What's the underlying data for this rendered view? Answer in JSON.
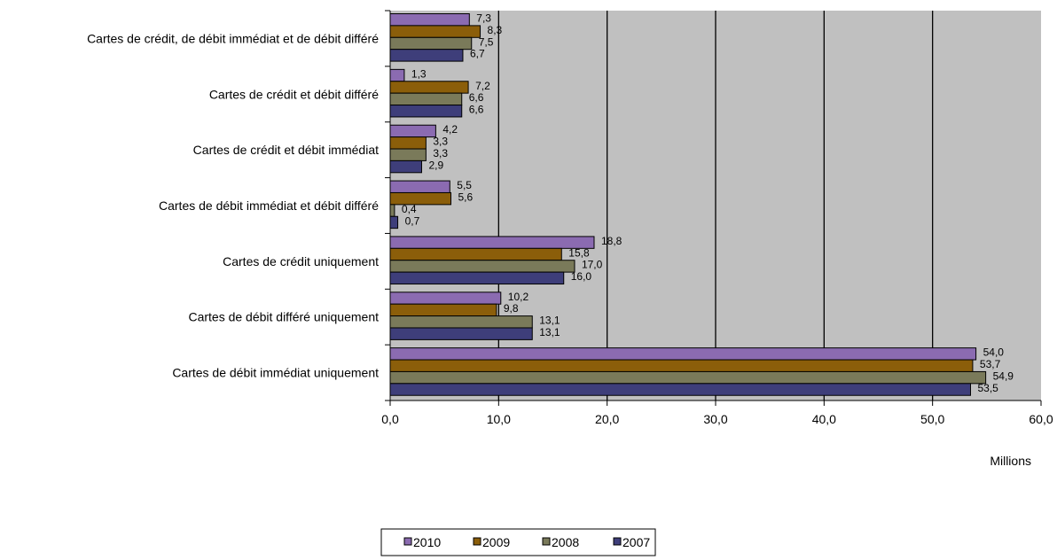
{
  "chart_data": {
    "type": "bar",
    "orientation": "horizontal",
    "categories": [
      "Cartes de crédit, de débit immédiat et de débit différé",
      "Cartes de crédit et débit différé",
      "Cartes de crédit et débit immédiat",
      "Cartes de débit immédiat et débit différé",
      "Cartes de crédit uniquement",
      "Cartes de débit différé uniquement",
      "Cartes de débit immédiat uniquement"
    ],
    "series": [
      {
        "name": "2010",
        "color": "#8B6BB1",
        "values": [
          7.3,
          1.3,
          4.2,
          5.5,
          18.8,
          10.2,
          54.0
        ],
        "labels": [
          "7,3",
          "1,3",
          "4,2",
          "5,5",
          "18,8",
          "10,2",
          "54,0"
        ]
      },
      {
        "name": "2009",
        "color": "#8B5E0A",
        "values": [
          8.3,
          7.2,
          3.3,
          5.6,
          15.8,
          9.8,
          53.7
        ],
        "labels": [
          "8,3",
          "7,2",
          "3,3",
          "5,6",
          "15,8",
          "9,8",
          "53,7"
        ]
      },
      {
        "name": "2008",
        "color": "#7A7A5A",
        "values": [
          7.5,
          6.6,
          3.3,
          0.4,
          17.0,
          13.1,
          54.9
        ],
        "labels": [
          "7,5",
          "6,6",
          "3,3",
          "0,4",
          "17,0",
          "13,1",
          "54,9"
        ]
      },
      {
        "name": "2007",
        "color": "#3E3E7A",
        "values": [
          6.7,
          6.6,
          2.9,
          0.7,
          16.0,
          13.1,
          53.5
        ],
        "labels": [
          "6,7",
          "6,6",
          "2,9",
          "0,7",
          "16,0",
          "13,1",
          "53,5"
        ]
      }
    ],
    "xlim": [
      0,
      60
    ],
    "xticks": [
      0,
      10,
      20,
      30,
      40,
      50,
      60
    ],
    "xtick_labels": [
      "0,0",
      "10,0",
      "20,0",
      "30,0",
      "40,0",
      "50,0",
      "60,0"
    ],
    "xlabel": "Millions",
    "grid": "vertical",
    "legend_position": "bottom",
    "colors": {
      "plot_background": "#C0C0C0",
      "gridline": "#000000"
    }
  }
}
